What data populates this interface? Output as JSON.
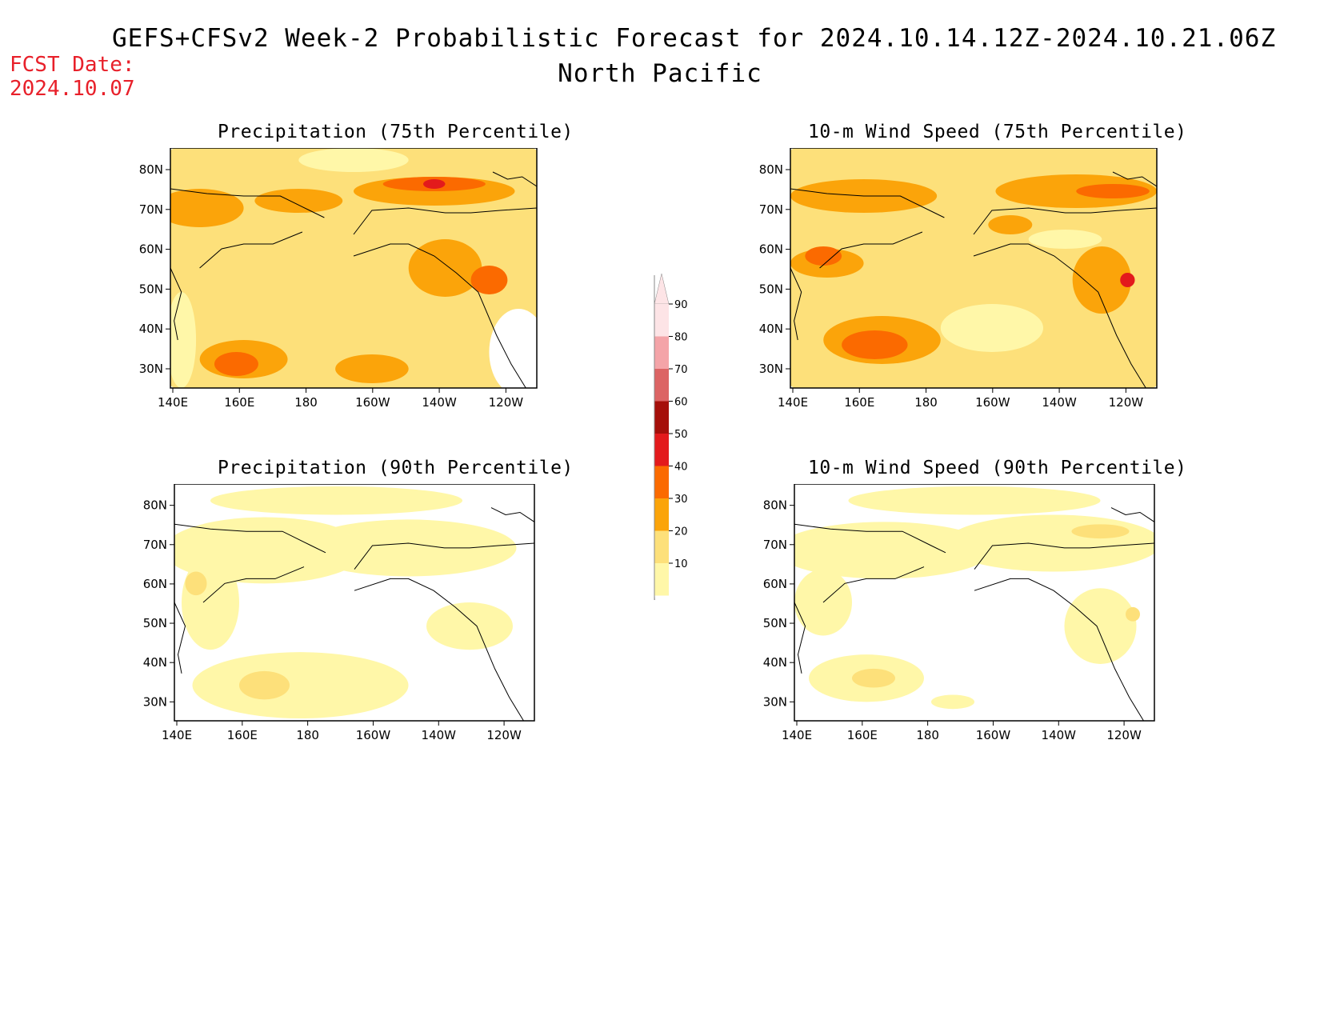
{
  "header": {
    "title": "GEFS+CFSv2 Week-2 Probabilistic Forecast for 2024.10.14.12Z-2024.10.21.06Z",
    "region": "North Pacific",
    "fcst_label": "FCST Date:",
    "fcst_date": "2024.10.07"
  },
  "panels": [
    {
      "title": "Precipitation (75th Percentile)"
    },
    {
      "title": "10-m Wind Speed (75th Percentile)"
    },
    {
      "title": "Precipitation (90th Percentile)"
    },
    {
      "title": "10-m Wind Speed (90th Percentile)"
    }
  ],
  "axes": {
    "lon_labels": [
      "140E",
      "160E",
      "180",
      "160W",
      "140W",
      "120W"
    ],
    "lat_labels": [
      "80N",
      "70N",
      "60N",
      "50N",
      "40N",
      "30N"
    ]
  },
  "colorbar": {
    "levels": [
      "90",
      "80",
      "70",
      "60",
      "50",
      "40",
      "30",
      "20",
      "10"
    ],
    "colors": {
      "c10": "#fff7a8",
      "c20": "#fde07a",
      "c30": "#fba40a",
      "c40": "#fb6a00",
      "c50": "#e31a1c",
      "c60": "#a50f0a",
      "c70": "#dc6464",
      "c80": "#f4a4a8",
      "c90": "#fde4e6"
    }
  }
}
